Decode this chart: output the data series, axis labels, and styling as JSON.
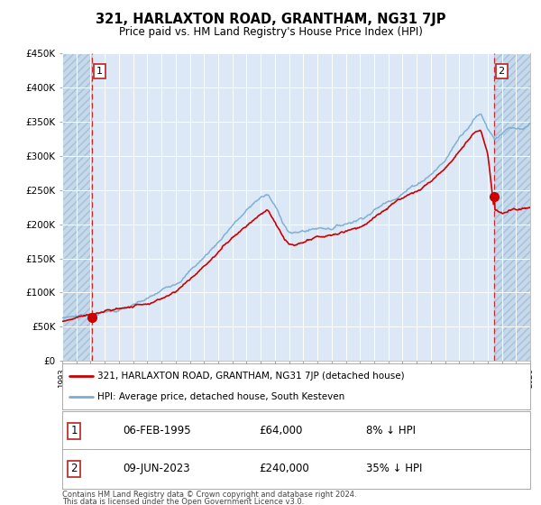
{
  "title": "321, HARLAXTON ROAD, GRANTHAM, NG31 7JP",
  "subtitle": "Price paid vs. HM Land Registry's House Price Index (HPI)",
  "red_label": "321, HARLAXTON ROAD, GRANTHAM, NG31 7JP (detached house)",
  "blue_label": "HPI: Average price, detached house, South Kesteven",
  "point1_date": "06-FEB-1995",
  "point1_price": 64000,
  "point1_note": "8% ↓ HPI",
  "point2_date": "09-JUN-2023",
  "point2_price": 240000,
  "point2_note": "35% ↓ HPI",
  "footnote1": "Contains HM Land Registry data © Crown copyright and database right 2024.",
  "footnote2": "This data is licensed under the Open Government Licence v3.0.",
  "plot_bg_color": "#dce8f5",
  "grid_color": "#ffffff",
  "hatch_bg_color": "#c5d9ec",
  "red_color": "#cc0000",
  "blue_color": "#7aadd4",
  "ylim": [
    0,
    450000
  ],
  "xstart_year": 1993,
  "xend_year": 2026,
  "point1_year": 1995.1,
  "point2_year": 2023.45
}
